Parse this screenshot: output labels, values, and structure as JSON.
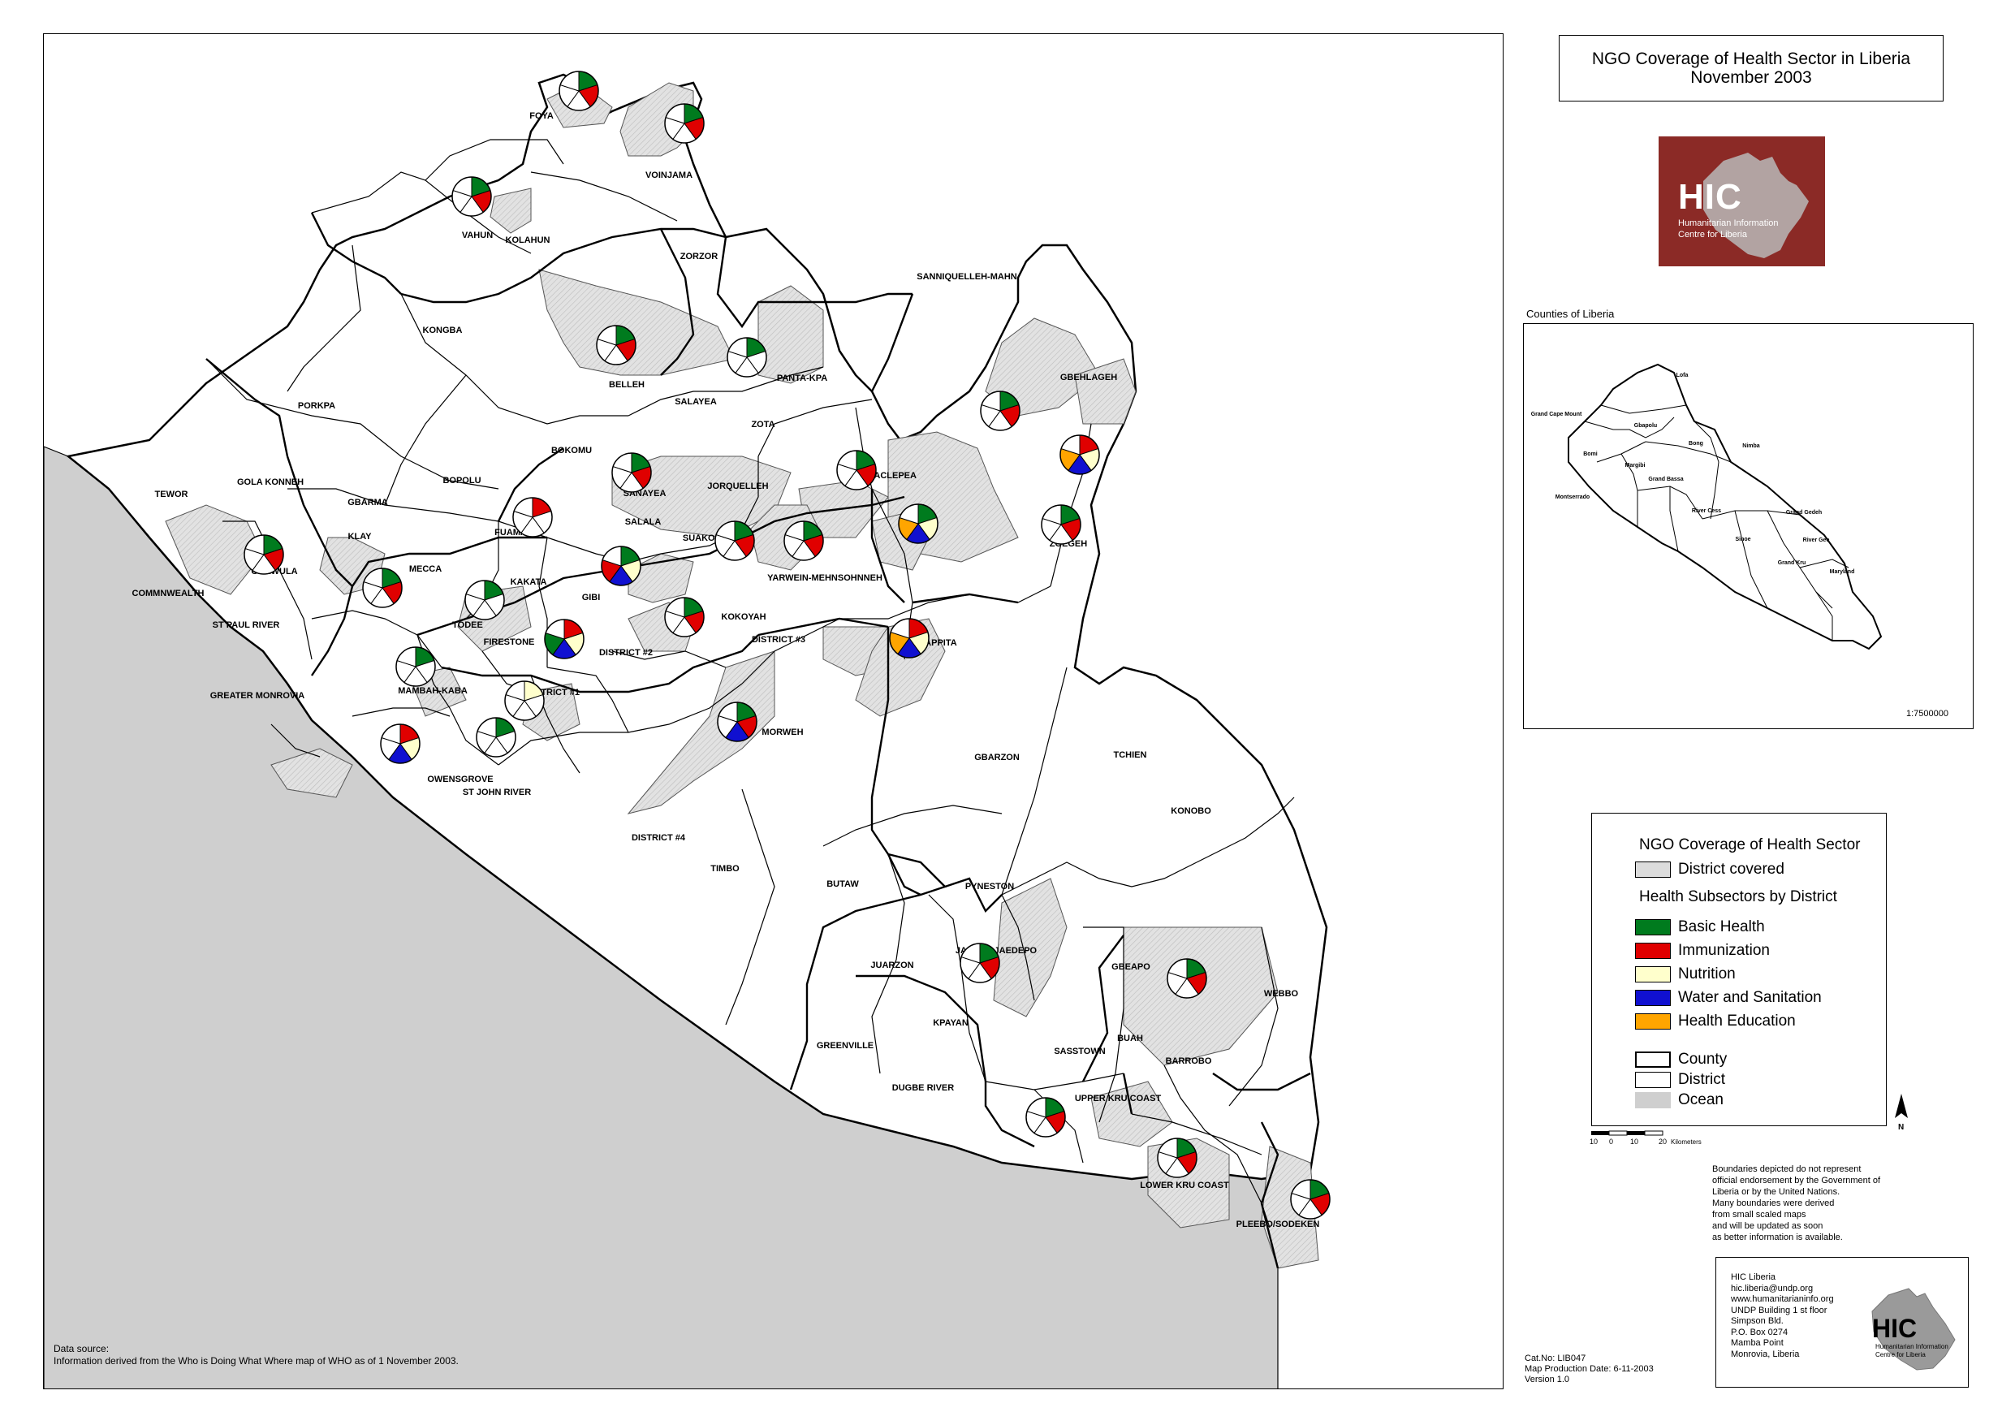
{
  "title": {
    "line1": "NGO Coverage of Health Sector in Liberia",
    "line2": "November 2003"
  },
  "colors": {
    "basic_health": "#007b1e",
    "immunization": "#e00000",
    "nutrition": "#ffffcc",
    "water_sanitation": "#1010d0",
    "health_education": "#ffa500",
    "covered": "#d6d6d6",
    "ocean": "#cfcfcf",
    "logo_red": "#8b2a26"
  },
  "logo": {
    "name": "HIC",
    "subtitle_1": "Humanitarian Information",
    "subtitle_2": "Centre for Liberia"
  },
  "inset": {
    "caption": "Counties of Liberia",
    "scale": "1:7500000",
    "counties": [
      "Lofa",
      "Grand Cape Mount",
      "Gbapolu",
      "Bomi",
      "Bong",
      "Nimba",
      "Margibi",
      "Montserrado",
      "Grand Bassa",
      "River Cess",
      "Grand Gedeh",
      "Sinoe",
      "River Gee",
      "Grand Kru",
      "Maryland"
    ]
  },
  "legend": {
    "title": "NGO Coverage of Health Sector",
    "covered_label": "District covered",
    "subsectors_title": "Health Subsectors by District",
    "subsectors": [
      {
        "key": "basic_health",
        "label": "Basic Health"
      },
      {
        "key": "immunization",
        "label": "Immunization"
      },
      {
        "key": "nutrition",
        "label": "Nutrition"
      },
      {
        "key": "water_sanitation",
        "label": "Water and Sanitation"
      },
      {
        "key": "health_education",
        "label": "Health Education"
      }
    ],
    "county_label": "County",
    "district_label": "District",
    "ocean_label": "Ocean"
  },
  "scale_bar": {
    "ticks": [
      "10",
      "0",
      "10",
      "20"
    ],
    "unit": "Kilometers"
  },
  "north_label": "N",
  "disclaimer": [
    "Boundaries depicted do not represent",
    "official endorsement by the Government of",
    "Liberia or by the United Nations.",
    "Many boundaries were derived",
    "from small scaled maps",
    "and will be updated as soon",
    "as better information is available."
  ],
  "data_source": {
    "heading": "Data source:",
    "text": "Information derived from the Who is Doing What Where map of WHO as of 1 November 2003."
  },
  "catalog": {
    "cat_no": "Cat.No: LIB047",
    "production_date": "Map Production Date: 6-11-2003",
    "version": "Version 1.0"
  },
  "contact": {
    "lines": [
      "HIC Liberia",
      "hic.liberia@undp.org",
      "www.humanitarianinfo.org",
      "UNDP Building 1 st floor",
      "Simpson Bld.",
      "P.O. Box 0274",
      "Mamba Point",
      "Monrovia, Liberia"
    ]
  },
  "districts": [
    {
      "name": "FOYA"
    },
    {
      "name": "VOINJAMA"
    },
    {
      "name": "VAHUN"
    },
    {
      "name": "KOLAHUN"
    },
    {
      "name": "ZORZOR"
    },
    {
      "name": "KONGBA"
    },
    {
      "name": "BELLEH"
    },
    {
      "name": "SALAYEA"
    },
    {
      "name": "PANTA-KPA"
    },
    {
      "name": "SANNIQUELLEH-MAHN"
    },
    {
      "name": "GBEHLAGEH"
    },
    {
      "name": "PORKPA"
    },
    {
      "name": "ZOTA"
    },
    {
      "name": "BOKOMU"
    },
    {
      "name": "TEWOR"
    },
    {
      "name": "GOLA KONNEH"
    },
    {
      "name": "BOPOLU"
    },
    {
      "name": "SANAYEA"
    },
    {
      "name": "JORQUELLEH"
    },
    {
      "name": "SACLEPEA"
    },
    {
      "name": "GBARMA"
    },
    {
      "name": "SALALA"
    },
    {
      "name": "FUAMAH"
    },
    {
      "name": "SUAKOKO"
    },
    {
      "name": "ZOEGEH"
    },
    {
      "name": "KLAY"
    },
    {
      "name": "GARWULA"
    },
    {
      "name": "MECCA"
    },
    {
      "name": "KAKATA"
    },
    {
      "name": "YARWEIN-MEHNSOHNNEH"
    },
    {
      "name": "COMMNWEALTH"
    },
    {
      "name": "GIBI"
    },
    {
      "name": "ST PAUL RIVER"
    },
    {
      "name": "TODEE"
    },
    {
      "name": "KOKOYAH"
    },
    {
      "name": "FIRESTONE"
    },
    {
      "name": "DISTRICT #2"
    },
    {
      "name": "DISTRICT #3"
    },
    {
      "name": "TAPPITA"
    },
    {
      "name": "MAMBAH-KABA"
    },
    {
      "name": "GREATER MONROVIA"
    },
    {
      "name": "DISTRICT #1"
    },
    {
      "name": "MORWEH"
    },
    {
      "name": "GBARZON"
    },
    {
      "name": "TCHIEN"
    },
    {
      "name": "OWENSGROVE"
    },
    {
      "name": "ST JOHN RIVER"
    },
    {
      "name": "KONOBO"
    },
    {
      "name": "DISTRICT #4"
    },
    {
      "name": "TIMBO"
    },
    {
      "name": "BUTAW"
    },
    {
      "name": "PYNESTON"
    },
    {
      "name": "JAEDAE JAEDEPO"
    },
    {
      "name": "JUARZON"
    },
    {
      "name": "GBEAPO"
    },
    {
      "name": "WEBBO"
    },
    {
      "name": "KPAYAN"
    },
    {
      "name": "GREENVILLE"
    },
    {
      "name": "BUAH"
    },
    {
      "name": "SASSTOWN"
    },
    {
      "name": "BARROBO"
    },
    {
      "name": "DUGBE RIVER"
    },
    {
      "name": "UPPER KRU COAST"
    },
    {
      "name": "LOWER KRU COAST"
    },
    {
      "name": "PLEEBO/SODEKEN"
    }
  ],
  "pies": [
    {
      "district": "FOYA",
      "subsectors": [
        "basic_health",
        "immunization"
      ]
    },
    {
      "district": "VOINJAMA",
      "subsectors": [
        "basic_health",
        "immunization"
      ]
    },
    {
      "district": "VAHUN",
      "subsectors": [
        "basic_health",
        "immunization"
      ]
    },
    {
      "district": "BELLEH",
      "subsectors": [
        "basic_health",
        "immunization"
      ]
    },
    {
      "district": "SALAYEA",
      "subsectors": [
        "basic_health"
      ]
    },
    {
      "district": "SANNIQUELLEH-MAHN",
      "subsectors": [
        "basic_health",
        "immunization"
      ]
    },
    {
      "district": "GBEHLAGEH",
      "subsectors": [
        "immunization",
        "nutrition",
        "water_sanitation",
        "health_education"
      ]
    },
    {
      "district": "ZOTA",
      "subsectors": [
        "basic_health",
        "immunization"
      ]
    },
    {
      "district": "SANAYEA",
      "subsectors": [
        "basic_health",
        "immunization"
      ]
    },
    {
      "district": "SACLEPEA",
      "subsectors": [
        "basic_health",
        "nutrition",
        "water_sanitation",
        "health_education"
      ]
    },
    {
      "district": "ZOEGEH",
      "subsectors": [
        "basic_health",
        "immunization"
      ]
    },
    {
      "district": "FUAMAH",
      "subsectors": [
        "immunization"
      ]
    },
    {
      "district": "SALALA",
      "subsectors": [
        "basic_health",
        "nutrition",
        "water_sanitation",
        "immunization"
      ]
    },
    {
      "district": "SUAKOKO",
      "subsectors": [
        "basic_health",
        "immunization"
      ]
    },
    {
      "district": "JORQUELLEH",
      "subsectors": [
        "basic_health",
        "immunization"
      ]
    },
    {
      "district": "GARWULA",
      "subsectors": [
        "basic_health",
        "immunization"
      ]
    },
    {
      "district": "KLAY",
      "subsectors": [
        "basic_health",
        "immunization"
      ]
    },
    {
      "district": "TODEE",
      "subsectors": [
        "basic_health"
      ]
    },
    {
      "district": "KAKATA",
      "subsectors": [
        "immunization",
        "nutrition",
        "water_sanitation",
        "basic_health"
      ]
    },
    {
      "district": "GIBI",
      "subsectors": [
        "basic_health",
        "immunization"
      ]
    },
    {
      "district": "YARWEIN-MEHNSOHNNEH",
      "subsectors": [
        "immunization",
        "nutrition",
        "water_sanitation",
        "health_education"
      ]
    },
    {
      "district": "ST PAUL RIVER",
      "subsectors": [
        "basic_health"
      ]
    },
    {
      "district": "FIRESTONE",
      "subsectors": [
        "nutrition"
      ]
    },
    {
      "district": "DISTRICT #3",
      "subsectors": [
        "basic_health",
        "immunization",
        "water_sanitation"
      ]
    },
    {
      "district": "MAMBAH-KABA",
      "subsectors": [
        "basic_health"
      ]
    },
    {
      "district": "GREATER MONROVIA",
      "subsectors": [
        "immunization",
        "nutrition",
        "water_sanitation"
      ]
    },
    {
      "district": "PYNESTON",
      "subsectors": [
        "basic_health",
        "immunization"
      ]
    },
    {
      "district": "GBEAPO",
      "subsectors": [
        "basic_health",
        "immunization"
      ]
    },
    {
      "district": "SASSTOWN",
      "subsectors": [
        "basic_health",
        "immunization"
      ]
    },
    {
      "district": "UPPER KRU COAST",
      "subsectors": [
        "basic_health",
        "immunization"
      ]
    },
    {
      "district": "PLEEBO/SODEKEN",
      "subsectors": [
        "basic_health",
        "immunization"
      ]
    }
  ]
}
